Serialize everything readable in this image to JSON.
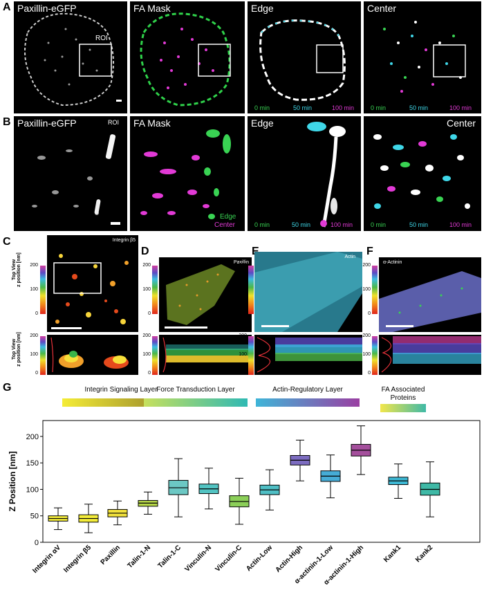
{
  "panel_labels": {
    "A": "A",
    "B": "B",
    "C": "C",
    "D": "D",
    "E": "E",
    "F": "F",
    "G": "G"
  },
  "row_a": {
    "titles": [
      "Paxillin-eGFP",
      "FA Mask",
      "Edge",
      "Center"
    ],
    "roi_label": "ROI",
    "time_labels": [
      {
        "text": "0 min",
        "color": "#39d353"
      },
      {
        "text": "50 min",
        "color": "#3fd7e8"
      },
      {
        "text": "100 min",
        "color": "#e23ad6"
      }
    ]
  },
  "row_b": {
    "titles": [
      "Paxillin-eGFP",
      "FA Mask",
      "Edge",
      "Center"
    ],
    "roi_label": "ROI",
    "mask_legend": [
      {
        "text": "Edge",
        "color": "#39d353"
      },
      {
        "text": "Center",
        "color": "#e23ad6"
      }
    ],
    "time_labels": [
      {
        "text": "0 min",
        "color": "#39d353"
      },
      {
        "text": "50 min",
        "color": "#3fd7e8"
      },
      {
        "text": "100 min",
        "color": "#e23ad6"
      }
    ]
  },
  "row_c": {
    "panels": [
      {
        "title": "Integrin β5"
      },
      {
        "title": "Paxillin"
      },
      {
        "title": "Actin"
      },
      {
        "title": "α-Actinin"
      }
    ],
    "colorbar_ticks": [
      "200",
      "100",
      "0"
    ],
    "top_view_label": "Top View",
    "z_label": "z position [nm]"
  },
  "layer_headers": [
    {
      "text": "Integrin Signaling Layer",
      "colors": [
        "#f4ec36",
        "#8e7f2a"
      ]
    },
    {
      "text": "Force Transduction Layer",
      "colors": [
        "#c6e05d",
        "#2fb9b3"
      ]
    },
    {
      "text": "Actin-Regulatory Layer",
      "colors": [
        "#3fb5d8",
        "#9a3fa2"
      ]
    },
    {
      "text": "FA Associated Proteins",
      "colors": [
        "#f2e64b",
        "#3fb9a6"
      ]
    }
  ],
  "chart_data": {
    "type": "box",
    "ylabel": "Z Position [nm]",
    "ylim": [
      0,
      230
    ],
    "yticks": [
      "0",
      "50",
      "100",
      "150",
      "200"
    ],
    "categories": [
      "Integrin αV",
      "Integrin β5",
      "Paxillin",
      "Talin-1-N",
      "Talin-1-C",
      "Vinculin-N",
      "Vinculin-C",
      "Actin-Low",
      "Actin-High",
      "α-actinin-1-Low",
      "α-actinin-1-High",
      "Kank1",
      "Kank2"
    ],
    "boxes": [
      {
        "min": 24,
        "q1": 40,
        "median": 45,
        "q3": 50,
        "max": 65,
        "color": "#f3ec3a"
      },
      {
        "min": 18,
        "q1": 38,
        "median": 45,
        "q3": 52,
        "max": 72,
        "color": "#f3ec3a"
      },
      {
        "min": 33,
        "q1": 48,
        "median": 55,
        "q3": 62,
        "max": 78,
        "color": "#f3e33c"
      },
      {
        "min": 53,
        "q1": 68,
        "median": 74,
        "q3": 79,
        "max": 95,
        "color": "#b6d748"
      },
      {
        "min": 48,
        "q1": 90,
        "median": 103,
        "q3": 117,
        "max": 158,
        "color": "#6cc8c4"
      },
      {
        "min": 63,
        "q1": 92,
        "median": 101,
        "q3": 110,
        "max": 140,
        "color": "#52c3c2"
      },
      {
        "min": 34,
        "q1": 67,
        "median": 77,
        "q3": 88,
        "max": 121,
        "color": "#8bcf58"
      },
      {
        "min": 61,
        "q1": 90,
        "median": 99,
        "q3": 108,
        "max": 137,
        "color": "#4fbfc5"
      },
      {
        "min": 116,
        "q1": 146,
        "median": 155,
        "q3": 164,
        "max": 193,
        "color": "#7c6cc0"
      },
      {
        "min": 84,
        "q1": 115,
        "median": 125,
        "q3": 135,
        "max": 165,
        "color": "#46acd6"
      },
      {
        "min": 128,
        "q1": 163,
        "median": 174,
        "q3": 185,
        "max": 220,
        "color": "#a44f9c"
      },
      {
        "min": 83,
        "q1": 109,
        "median": 116,
        "q3": 123,
        "max": 148,
        "color": "#3db8d4"
      },
      {
        "min": 48,
        "q1": 89,
        "median": 100,
        "q3": 112,
        "max": 152,
        "color": "#3fb9a6"
      }
    ]
  }
}
